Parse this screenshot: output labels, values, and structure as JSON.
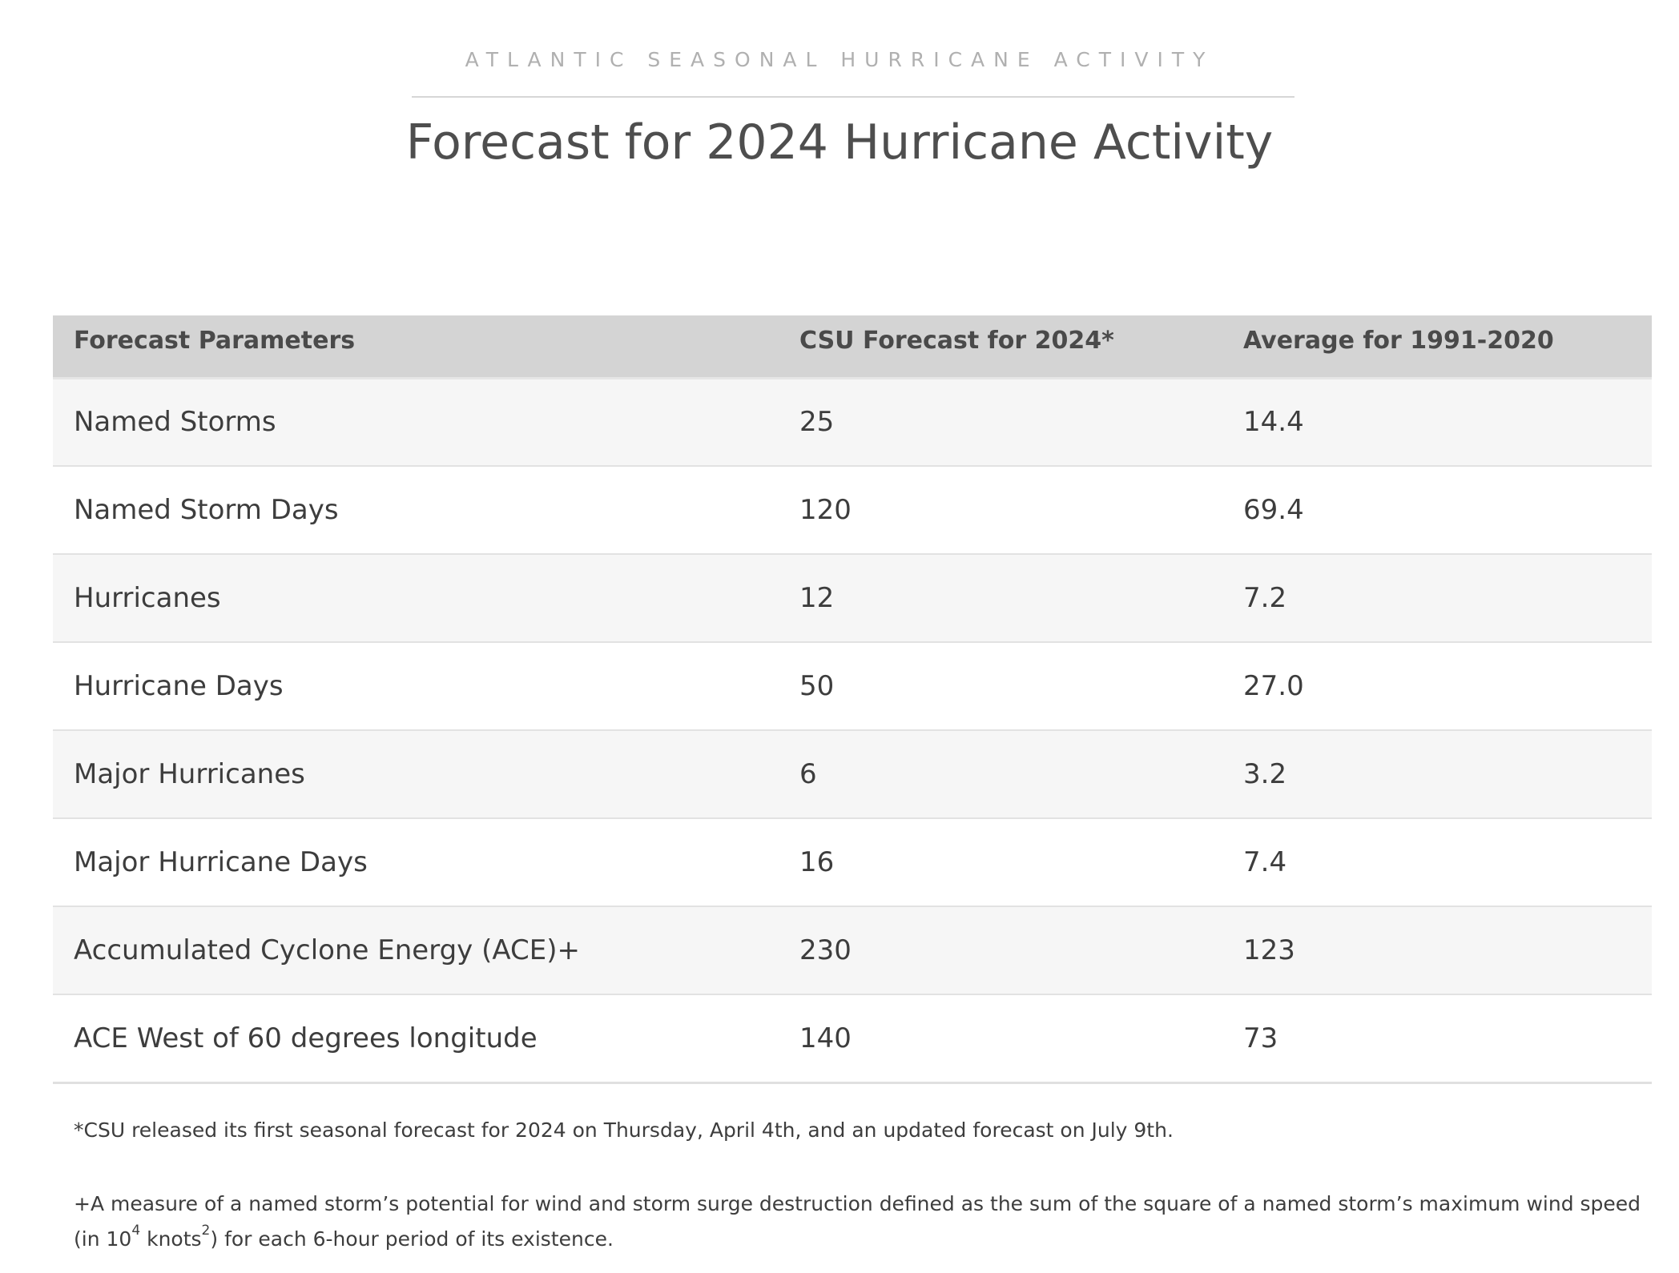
{
  "header": {
    "eyebrow": "ATLANTIC SEASONAL HURRICANE ACTIVITY",
    "title": "Forecast for 2024 Hurricane Activity"
  },
  "table": {
    "columns": [
      "Forecast Parameters",
      "CSU Forecast for 2024*",
      "Average for 1991-2020"
    ],
    "rows": [
      {
        "parameter": "Named Storms",
        "forecast": "25",
        "average": "14.4"
      },
      {
        "parameter": "Named Storm Days",
        "forecast": "120",
        "average": "69.4"
      },
      {
        "parameter": "Hurricanes",
        "forecast": "12",
        "average": "7.2"
      },
      {
        "parameter": "Hurricane Days",
        "forecast": "50",
        "average": "27.0"
      },
      {
        "parameter": "Major Hurricanes",
        "forecast": "6",
        "average": "3.2"
      },
      {
        "parameter": "Major Hurricane Days",
        "forecast": "16",
        "average": "7.4"
      },
      {
        "parameter": "Accumulated Cyclone Energy (ACE)+",
        "forecast": "230",
        "average": "123"
      },
      {
        "parameter": "ACE West of 60 degrees longitude",
        "forecast": "140",
        "average": "73"
      }
    ]
  },
  "footnotes": {
    "csu_note": "*CSU released its first seasonal forecast for 2024 on Thursday, April 4th, and an updated forecast on July 9th.",
    "ace_note": {
      "part1": "+A measure of a named storm’s potential for wind and storm surge destruction defined as the sum of the square of a named storm’s maximum wind speed (in 10",
      "sup1": "4",
      "part2": " knots",
      "sup2": "2",
      "part3": ") for each 6-hour period of its existence."
    }
  }
}
